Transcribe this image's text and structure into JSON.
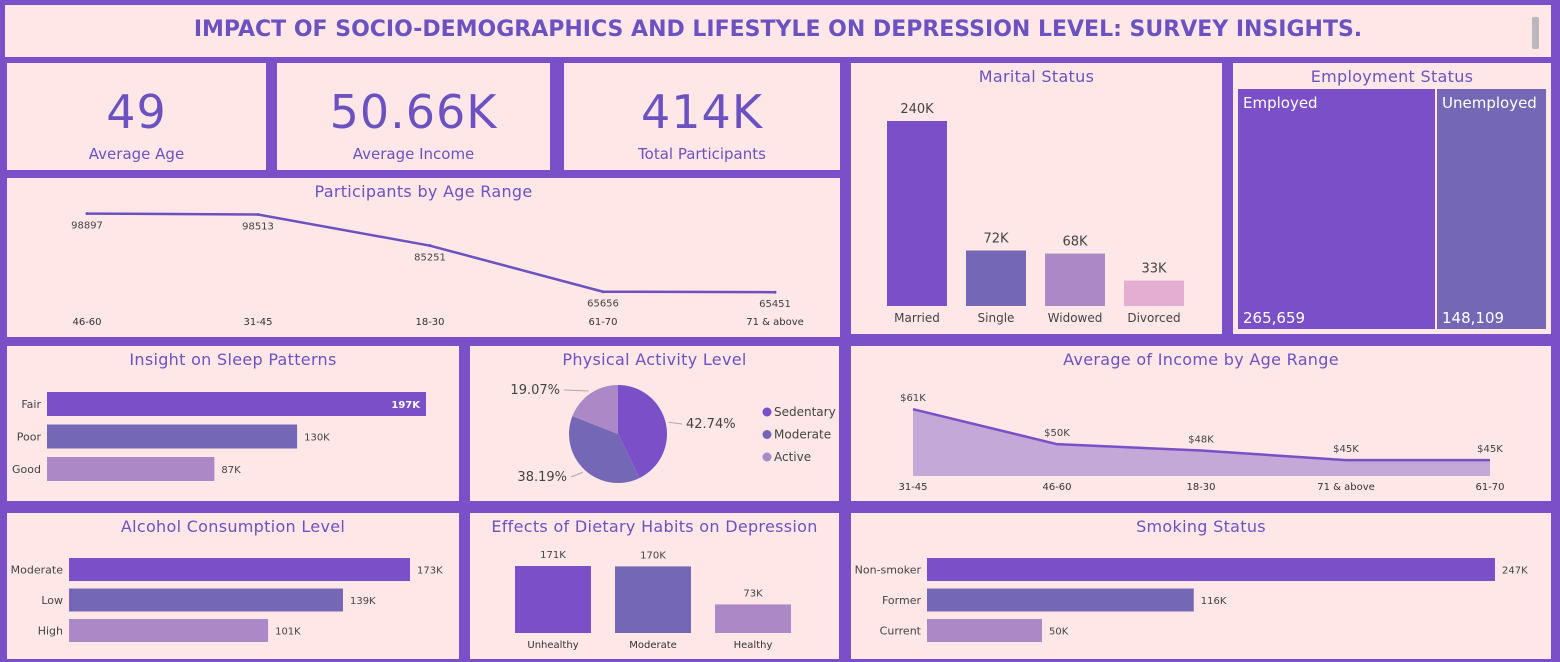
{
  "header": {
    "title": "IMPACT OF SOCIO-DEMOGRAPHICS AND LIFESTYLE ON DEPRESSION LEVEL: SURVEY INSIGHTS."
  },
  "kpis": [
    {
      "value": "49",
      "label": "Average Age"
    },
    {
      "value": "50.66K",
      "label": "Average Income"
    },
    {
      "value": "414K",
      "label": "Total Participants"
    }
  ],
  "colors": {
    "primary": "#7b4fc7",
    "secondary": "#7468b6",
    "tertiary": "#ad88c6",
    "light": "#e4aed3",
    "panel": "#ffe6e7",
    "text": "#6c52c0"
  },
  "age_range": {
    "title": "Participants by Age Range"
  },
  "marital": {
    "title": "Marital Status"
  },
  "employment": {
    "title": "Employment Status",
    "items": [
      {
        "name": "Employed",
        "value": "265,659",
        "raw": 265659
      },
      {
        "name": "Unemployed",
        "value": "148,109",
        "raw": 148109
      }
    ]
  },
  "sleep": {
    "title": "Insight on Sleep Patterns"
  },
  "activity": {
    "title": "Physical Activity Level"
  },
  "income_age": {
    "title": "Average of Income by Age Range"
  },
  "alcohol": {
    "title": "Alcohol Consumption Level"
  },
  "diet": {
    "title": "Effects of Dietary Habits on Depression"
  },
  "smoking": {
    "title": "Smoking Status"
  },
  "chart_data": [
    {
      "id": "age",
      "type": "line",
      "categories": [
        "46-60",
        "31-45",
        "18-30",
        "61-70",
        "71 & above"
      ],
      "values": [
        98897,
        98513,
        85251,
        65656,
        65451
      ],
      "labels": [
        "98897",
        "98513",
        "85251",
        "65656",
        "65451"
      ]
    },
    {
      "id": "marital",
      "type": "bar",
      "categories": [
        "Married",
        "Single",
        "Widowed",
        "Divorced"
      ],
      "values": [
        240000,
        72000,
        68000,
        33000
      ],
      "labels": [
        "240K",
        "72K",
        "68K",
        "33K"
      ]
    },
    {
      "id": "sleep",
      "type": "bar",
      "orientation": "horizontal",
      "categories": [
        "Fair",
        "Poor",
        "Good"
      ],
      "values": [
        197000,
        130000,
        87000
      ],
      "labels": [
        "197K",
        "130K",
        "87K"
      ]
    },
    {
      "id": "activity",
      "type": "pie",
      "categories": [
        "Sedentary",
        "Moderate",
        "Active"
      ],
      "values": [
        42.74,
        38.19,
        19.07
      ],
      "labels": [
        "42.74%",
        "38.19%",
        "19.07%"
      ]
    },
    {
      "id": "income",
      "type": "area",
      "categories": [
        "31-45",
        "46-60",
        "18-30",
        "71 & above",
        "61-70"
      ],
      "values": [
        61000,
        50000,
        48000,
        45000,
        45000
      ],
      "labels": [
        "$61K",
        "$50K",
        "$48K",
        "$45K",
        "$45K"
      ]
    },
    {
      "id": "alcohol",
      "type": "bar",
      "orientation": "horizontal",
      "categories": [
        "Moderate",
        "Low",
        "High"
      ],
      "values": [
        173000,
        139000,
        101000
      ],
      "labels": [
        "173K",
        "139K",
        "101K"
      ]
    },
    {
      "id": "diet",
      "type": "bar",
      "categories": [
        "Unhealthy",
        "Moderate",
        "Healthy"
      ],
      "values": [
        171000,
        170000,
        73000
      ],
      "labels": [
        "171K",
        "170K",
        "73K"
      ]
    },
    {
      "id": "smoking",
      "type": "bar",
      "orientation": "horizontal",
      "categories": [
        "Non-smoker",
        "Former",
        "Current"
      ],
      "values": [
        247000,
        116000,
        50000
      ],
      "labels": [
        "247K",
        "116K",
        "50K"
      ]
    }
  ]
}
